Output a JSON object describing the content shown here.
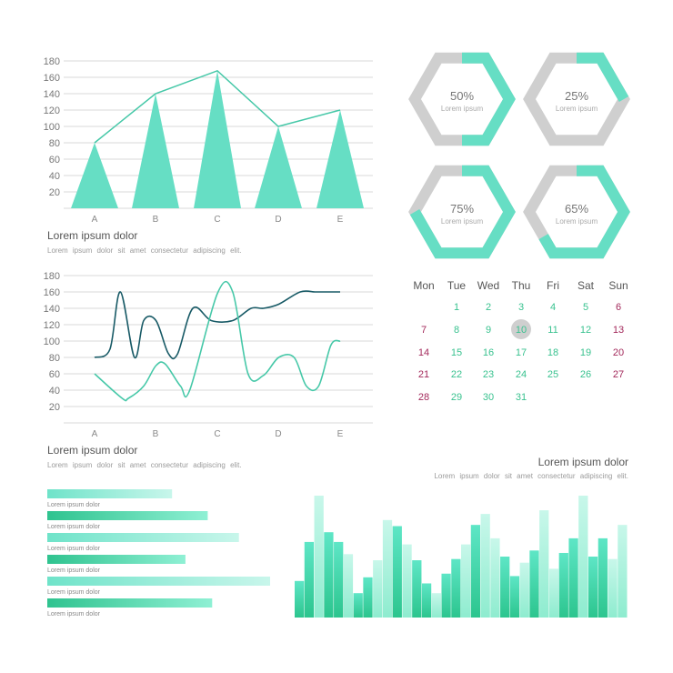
{
  "colors": {
    "teal": "#66dec4",
    "teal_mid": "#3fcf9f",
    "teal_light": "#a6f1dc",
    "teal_pale": "#c7f6ea",
    "dark_teal": "#185a66",
    "line_teal": "#46c8a8",
    "grid": "#d8d8d8",
    "hex_gray": "#cfcfcf",
    "magenta": "#a3295b",
    "cal_teal": "#39c28f"
  },
  "text": {
    "chart1_title": "Lorem ipsum dolor",
    "chart1_sub": "Lorem ipsum dolor sit amet consectetur adipiscing elit.",
    "chart2_title": "Lorem ipsum dolor",
    "chart2_sub": "Lorem ipsum dolor sit amet consectetur adipiscing elit.",
    "chart4_title": "Lorem ipsum dolor",
    "chart4_sub": "Lorem ipsum dolor sit amet consectetur adipiscing elit."
  },
  "chart_data": [
    {
      "type": "area",
      "title": "",
      "categories": [
        "A",
        "B",
        "C",
        "D",
        "E"
      ],
      "values": [
        80,
        140,
        168,
        100,
        120
      ],
      "yticks": [
        20,
        40,
        60,
        80,
        100,
        120,
        140,
        160,
        180
      ],
      "ylim": [
        0,
        180
      ],
      "grid": true
    },
    {
      "type": "line",
      "title": "",
      "categories": [
        "A",
        "B",
        "C",
        "D",
        "E"
      ],
      "yticks": [
        20,
        40,
        60,
        80,
        100,
        120,
        140,
        160,
        180
      ],
      "ylim": [
        0,
        180
      ],
      "grid": true,
      "series": [
        {
          "color": "#185a66",
          "x": [
            0,
            0.25,
            0.42,
            0.65,
            0.8,
            1.0,
            1.2,
            1.35,
            1.6,
            1.9,
            2.25,
            2.55,
            2.75,
            3.0,
            3.35,
            3.6,
            3.8,
            4.0
          ],
          "y": [
            80,
            90,
            160,
            80,
            125,
            125,
            85,
            84,
            140,
            125,
            125,
            140,
            140,
            145,
            160,
            160,
            160,
            160
          ]
        },
        {
          "color": "#46c8a8",
          "x": [
            0,
            0.45,
            0.55,
            0.8,
            1.0,
            1.15,
            1.4,
            1.55,
            2.0,
            2.25,
            2.5,
            2.75,
            3.0,
            3.25,
            3.45,
            3.65,
            3.85,
            4.0
          ],
          "y": [
            60,
            30,
            30,
            45,
            70,
            72,
            45,
            40,
            158,
            160,
            60,
            58,
            80,
            80,
            45,
            45,
            95,
            100
          ]
        }
      ]
    },
    {
      "type": "bar",
      "orientation": "horizontal",
      "labels": [
        "Lorem ipsum dolor",
        "Lorem ipsum dolor",
        "Lorem ipsum dolor",
        "Lorem ipsum dolor",
        "Lorem ipsum dolor",
        "Lorem ipsum dolor"
      ],
      "values_pairs": [
        [
          0.56,
          0.72
        ],
        [
          0.86,
          0.62
        ],
        [
          1.0,
          0.74
        ]
      ]
    },
    {
      "type": "bar",
      "values": [
        0.3,
        0.62,
        1.0,
        0.7,
        0.62,
        0.52,
        0.2,
        0.33,
        0.47,
        0.8,
        0.75,
        0.6,
        0.47,
        0.28,
        0.2,
        0.36,
        0.48,
        0.6,
        0.76,
        0.85,
        0.65,
        0.5,
        0.34,
        0.45,
        0.55,
        0.88,
        0.4,
        0.53,
        0.65,
        1.0,
        0.5,
        0.65,
        0.48,
        0.76
      ]
    }
  ],
  "rings": [
    {
      "value": 0.5,
      "label": "50%",
      "sub": "Lorem ipsum"
    },
    {
      "value": 0.25,
      "label": "25%",
      "sub": "Lorem ipsum"
    },
    {
      "value": 0.75,
      "label": "75%",
      "sub": "Lorem ipsum"
    },
    {
      "value": 0.65,
      "label": "65%",
      "sub": "Lorem ipsum"
    }
  ],
  "calendar": {
    "weekdays": [
      "Mon",
      "Tue",
      "Wed",
      "Thu",
      "Fri",
      "Sat",
      "Sun"
    ],
    "start_offset": 1,
    "days": 31,
    "highlight": 10,
    "weekend_magenta_days": [
      6,
      7,
      13,
      14,
      20,
      21,
      27,
      28
    ]
  }
}
